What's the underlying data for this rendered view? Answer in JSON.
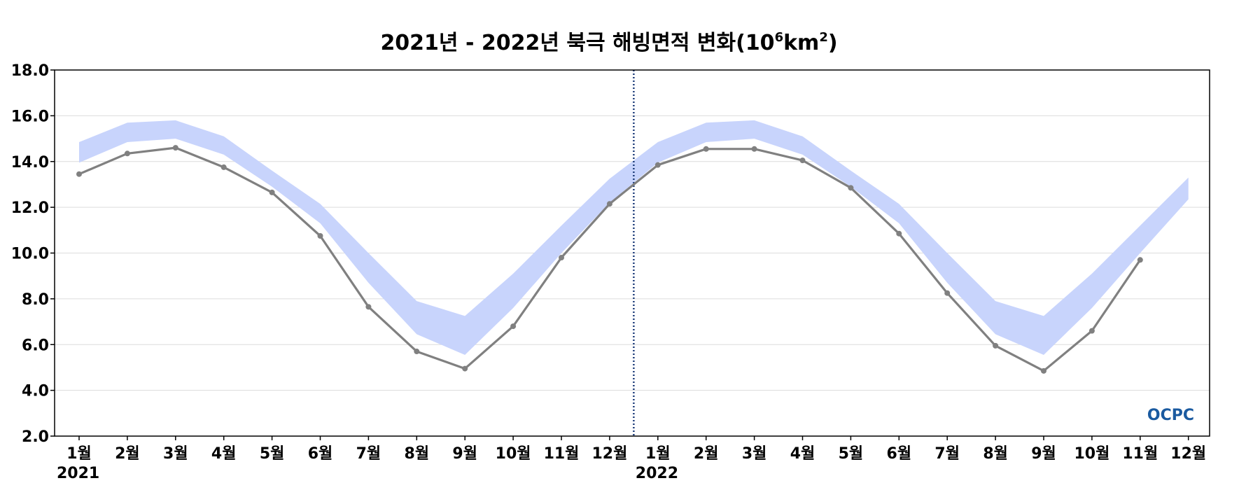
{
  "chart_data": {
    "type": "line",
    "title": "2021년 - 2022년 북극 해빙면적 변화(10",
    "title_sup1": "6",
    "title_mid": "km",
    "title_sup2": "2",
    "title_end": ")",
    "ylim": [
      2.0,
      18.0
    ],
    "yticks": [
      "2.0",
      "4.0",
      "6.0",
      "8.0",
      "10.0",
      "12.0",
      "14.0",
      "16.0",
      "18.0"
    ],
    "categories": [
      "1월",
      "2월",
      "3월",
      "4월",
      "5월",
      "6월",
      "7월",
      "8월",
      "9월",
      "10월",
      "11월",
      "12월",
      "1월",
      "2월",
      "3월",
      "4월",
      "5월",
      "6월",
      "7월",
      "8월",
      "9월",
      "10월",
      "11월",
      "12월"
    ],
    "years": [
      {
        "label": "2021",
        "index": 0
      },
      {
        "label": "2022",
        "index": 12
      }
    ],
    "divider_between": [
      11,
      12
    ],
    "grid": true,
    "colors": {
      "line": "#808080",
      "band": "#c8d4fc",
      "divider": "#1f3d7a",
      "logo": "#1a5aa0"
    },
    "band": {
      "upper": [
        14.85,
        15.7,
        15.8,
        15.1,
        13.6,
        12.15,
        10.0,
        7.9,
        7.25,
        9.1,
        11.2,
        13.25,
        14.85,
        15.7,
        15.8,
        15.1,
        13.6,
        12.15,
        10.0,
        7.9,
        7.25,
        9.1,
        11.2,
        13.3
      ],
      "lower": [
        13.95,
        14.85,
        15.0,
        14.3,
        12.9,
        11.3,
        8.7,
        6.45,
        5.55,
        7.6,
        10.0,
        12.2,
        13.95,
        14.85,
        15.0,
        14.3,
        12.9,
        11.3,
        8.7,
        6.45,
        5.55,
        7.6,
        10.0,
        12.35
      ]
    },
    "series": [
      {
        "values": [
          13.45,
          14.35,
          14.6,
          13.75,
          12.65,
          10.75,
          7.65,
          5.7,
          4.95,
          6.8,
          9.8,
          12.15,
          13.85,
          14.55,
          14.55,
          14.05,
          12.85,
          10.85,
          8.25,
          5.95,
          4.85,
          6.6,
          9.7,
          null
        ]
      }
    ],
    "logo_text": "OCPC"
  }
}
